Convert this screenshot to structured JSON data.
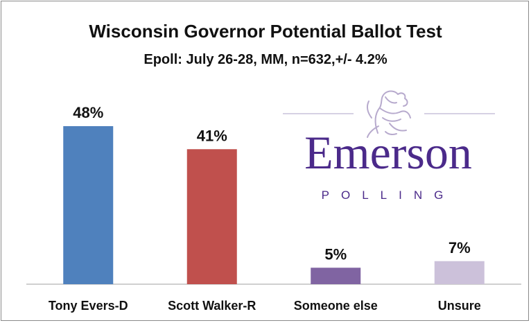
{
  "chart_data": {
    "type": "bar",
    "title": "Wisconsin Governor Potential Ballot Test",
    "subtitle": "Epoll: July 26-28, MM, n=632,+/- 4.2%",
    "categories": [
      "Tony Evers-D",
      "Scott Walker-R",
      "Someone else",
      "Unsure"
    ],
    "values": [
      48,
      41,
      5,
      7
    ],
    "data_labels": [
      "48%",
      "41%",
      "5%",
      "7%"
    ],
    "colors": [
      "#4f81bd",
      "#c0504d",
      "#8064a2",
      "#ccc1da"
    ],
    "ylim": [
      0,
      50
    ],
    "grid": false,
    "legend": "none"
  },
  "logo": {
    "name": "Emerson",
    "tagline": "POLLING",
    "color": "#4b2a8a",
    "icon": "lion-rampant-icon"
  }
}
